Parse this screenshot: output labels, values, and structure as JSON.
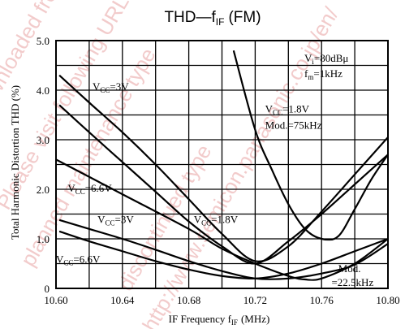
{
  "chart_data": {
    "type": "line",
    "title_main": "THD",
    "title_dash": "—",
    "title_f": "f",
    "title_sub": "IF",
    "title_suffix": "(FM)",
    "xlabel_main": "IF Frequency f",
    "xlabel_sub": "IF",
    "xlabel_unit": "(MHz)",
    "ylabel": "Total Harmonic Distortion THD (%)",
    "xlim": [
      10.6,
      10.8
    ],
    "ylim": [
      0,
      5.0
    ],
    "x_ticks": [
      10.6,
      10.64,
      10.68,
      10.72,
      10.76,
      10.8
    ],
    "x_tick_labels": [
      "10.60",
      "10.64",
      "10.68",
      "10.72",
      "10.76",
      "10.80"
    ],
    "y_ticks": [
      0,
      1.0,
      2.0,
      3.0,
      4.0,
      5.0
    ],
    "y_tick_labels": [
      "0",
      "1.0",
      "2.0",
      "3.0",
      "4.0",
      "5.0"
    ],
    "x_grid_step": 0.02,
    "y_grid_step": 0.5,
    "grid": true,
    "conditions": {
      "vi_lhs": "V",
      "vi_sub": "i",
      "vi_rhs": "=80dBμ",
      "fm_lhs": "f",
      "fm_sub": "m",
      "fm_rhs": "=1kHz"
    },
    "series": [
      {
        "name": "VCC=3V (Mod.=75kHz)",
        "x": [
          10.602,
          10.62,
          10.64,
          10.66,
          10.68,
          10.7,
          10.72,
          10.74,
          10.76,
          10.78,
          10.8
        ],
        "y": [
          4.3,
          3.75,
          3.15,
          2.5,
          1.8,
          1.1,
          0.55,
          0.85,
          1.55,
          2.3,
          3.05
        ]
      },
      {
        "name": "VCC=6.6V (Mod.=75kHz)",
        "x": [
          10.602,
          10.62,
          10.64,
          10.66,
          10.68,
          10.7,
          10.72,
          10.74,
          10.76,
          10.78,
          10.8
        ],
        "y": [
          3.7,
          3.15,
          2.55,
          1.95,
          1.35,
          0.85,
          0.5,
          0.95,
          1.5,
          2.1,
          2.7
        ]
      },
      {
        "name": "VCC=1.8V (Mod.=75kHz)",
        "x": [
          10.707,
          10.72,
          10.73,
          10.74,
          10.75,
          10.76,
          10.77,
          10.78,
          10.79,
          10.8
        ],
        "y": [
          4.8,
          3.2,
          2.4,
          1.7,
          1.2,
          1.0,
          1.05,
          1.6,
          2.2,
          2.7
        ]
      },
      {
        "name": "VCC=3V (Mod.=22.5kHz)",
        "x": [
          10.602,
          10.62,
          10.64,
          10.66,
          10.68,
          10.7,
          10.72,
          10.74,
          10.76,
          10.78,
          10.8
        ],
        "y": [
          1.38,
          1.2,
          1.0,
          0.78,
          0.55,
          0.35,
          0.2,
          0.2,
          0.3,
          0.48,
          0.9
        ]
      },
      {
        "name": "VCC=6.6V (Mod.=22.5kHz)",
        "x": [
          10.602,
          10.62,
          10.64,
          10.66,
          10.68,
          10.7,
          10.72,
          10.74,
          10.76,
          10.78,
          10.8
        ],
        "y": [
          1.15,
          0.95,
          0.75,
          0.55,
          0.38,
          0.25,
          0.2,
          0.3,
          0.5,
          0.75,
          1.0
        ]
      },
      {
        "name": "VCC=1.8V (Mod.=22.5kHz)",
        "x": [
          10.6,
          10.64,
          10.68,
          10.7,
          10.72,
          10.74,
          10.75,
          10.76,
          10.78,
          10.8
        ],
        "y": [
          2.6,
          1.9,
          1.2,
          0.8,
          0.5,
          0.25,
          0.18,
          0.2,
          0.5,
          1.0
        ]
      }
    ],
    "annotations": [
      {
        "id": "vcc3v-upper",
        "x": 10.622,
        "y": 4.0,
        "vcc": "V",
        "sub": "CC",
        "val": "=3V"
      },
      {
        "id": "vcc66v-upper",
        "x": 10.607,
        "y": 1.95,
        "vcc": "V",
        "sub": "CC",
        "val": "=6.6V"
      },
      {
        "id": "vcc18v-upper",
        "x": 10.726,
        "y": 3.55,
        "vcc": "V",
        "sub": "CC",
        "val": "=1.8V"
      },
      {
        "id": "mod-upper",
        "x": 10.726,
        "y": 3.22,
        "text": "Mod.=75kHz"
      },
      {
        "id": "vcc3v-lower",
        "x": 10.625,
        "y": 1.32,
        "vcc": "V",
        "sub": "CC",
        "val": "=3V"
      },
      {
        "id": "vcc18v-lower",
        "x": 10.683,
        "y": 1.32,
        "vcc": "V",
        "sub": "CC",
        "val": "=1.8V"
      },
      {
        "id": "vcc66v-lower",
        "x": 10.6,
        "y": 0.52,
        "vcc": "V",
        "sub": "CC",
        "val": "=6.6V"
      },
      {
        "id": "mod-lower-1",
        "x": 10.77,
        "y": 0.33,
        "text": "Mod."
      },
      {
        "id": "mod-lower-2",
        "x": 10.766,
        "y": 0.05,
        "text": "=22.5kHz"
      }
    ]
  },
  "watermark": {
    "color": "#e8a0a0",
    "lines": [
      "Downloaded from Arrow.com.",
      "planned maintenance type",
      "discontinued type",
      "Please visit following URL about latest information.",
      "http://www.semicon.panasonic.co.jp/en/"
    ]
  }
}
